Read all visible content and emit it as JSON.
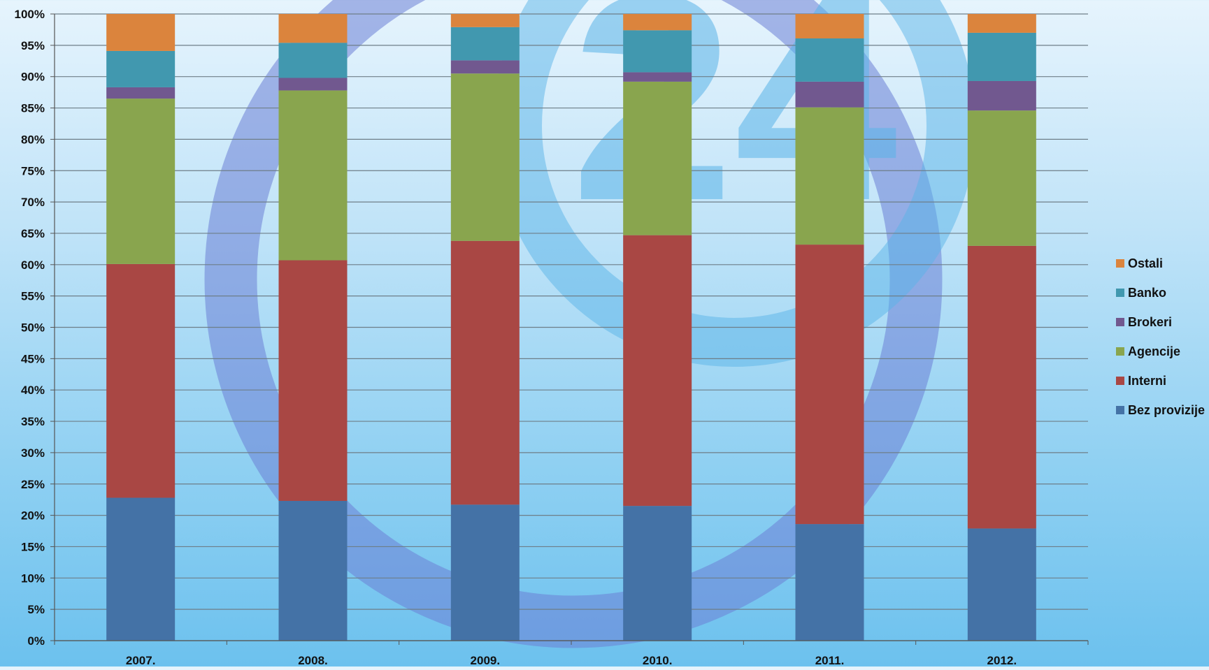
{
  "chart_data": {
    "type": "bar",
    "stacked": true,
    "categories": [
      "2007.",
      "2008.",
      "2009.",
      "2010.",
      "2011.",
      "2012."
    ],
    "y_tick_labels": [
      "0%",
      "5%",
      "10%",
      "15%",
      "20%",
      "25%",
      "30%",
      "35%",
      "40%",
      "45%",
      "50%",
      "55%",
      "60%",
      "65%",
      "70%",
      "75%",
      "80%",
      "85%",
      "90%",
      "95%",
      "100%"
    ],
    "ylim": [
      0,
      100
    ],
    "grid": true,
    "legend_position": "right",
    "series": [
      {
        "name": "Bez provizije",
        "color": "#4472a6",
        "values": [
          22.8,
          22.3,
          21.7,
          21.5,
          18.6,
          17.9
        ]
      },
      {
        "name": "Interni",
        "color": "#a94744",
        "values": [
          37.3,
          38.4,
          42.1,
          43.2,
          44.6,
          45.1
        ]
      },
      {
        "name": "Agencije",
        "color": "#89a54e",
        "values": [
          26.4,
          27.1,
          26.7,
          24.5,
          21.9,
          21.6
        ]
      },
      {
        "name": "Brokeri",
        "color": "#71588f",
        "values": [
          1.8,
          2.0,
          2.1,
          1.5,
          4.1,
          4.7
        ]
      },
      {
        "name": "Banko",
        "color": "#4198af",
        "values": [
          5.8,
          5.6,
          5.3,
          6.7,
          6.9,
          7.7
        ]
      },
      {
        "name": "Ostali",
        "color": "#db843d",
        "values": [
          5.9,
          4.6,
          2.1,
          2.6,
          3.9,
          3.0
        ]
      }
    ],
    "legend_order": [
      "Ostali",
      "Banko",
      "Brokeri",
      "Agencije",
      "Interni",
      "Bez provizije"
    ],
    "watermark": {
      "text": "24",
      "colors": [
        "#6b7fd6",
        "#5ab4e8"
      ]
    }
  }
}
